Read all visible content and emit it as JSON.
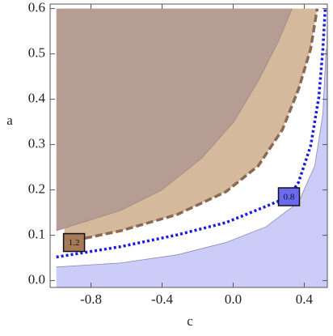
{
  "chart_data": {
    "type": "contour",
    "x_label": "c",
    "y_label": "a",
    "xlim": [
      -1.03,
      0.53
    ],
    "ylim": [
      -0.015,
      0.61
    ],
    "xticks": [
      -0.8,
      -0.4,
      {
        "value": 0,
        "label": "0.0"
      },
      0.4
    ],
    "yticks": [
      {
        "value": 0,
        "label": "0.0"
      },
      0.1,
      0.2,
      0.3,
      0.4,
      0.5,
      0.6
    ],
    "contours": [
      {
        "line_color": "#8a6a52",
        "line_style": "dashed",
        "fill": "#d4b99c",
        "fill_side": "upper-left",
        "label": "1.2",
        "label_color": "#a57a58",
        "x": [
          -0.95,
          -0.632,
          -0.314,
          -0.041,
          0.141,
          0.277,
          0.368,
          0.436,
          0.473
        ],
        "values": [
          0.084,
          0.11,
          0.146,
          0.196,
          0.253,
          0.333,
          0.422,
          0.511,
          0.6
        ]
      },
      {
        "line_color": "#9c8a86",
        "line_style": "solid",
        "fill": "#b59d94",
        "fill_side": "upper-left",
        "x": [
          -0.995,
          -0.632,
          -0.405,
          -0.177,
          0.005,
          0.141,
          0.255,
          0.332
        ],
        "values": [
          0.11,
          0.155,
          0.199,
          0.27,
          0.351,
          0.44,
          0.528,
          0.6
        ]
      },
      {
        "line_color": "#8a8ab0",
        "line_style": "solid",
        "fill": "#ccccf8",
        "fill_side": "lower-right",
        "x": [
          -0.995,
          -0.632,
          -0.314,
          -0.041,
          0.186,
          0.368,
          0.459,
          0.505,
          0.523
        ],
        "values": [
          0.03,
          0.039,
          0.057,
          0.084,
          0.119,
          0.173,
          0.253,
          0.368,
          0.511
        ]
      },
      {
        "line_color": "#1a1ae0",
        "line_style": "dotted",
        "fill": null,
        "fill_side": null,
        "label": "0.8",
        "label_color": "#6a6af0",
        "x": [
          -0.995,
          -0.632,
          -0.314,
          -0.041,
          0.186,
          0.314,
          0.368,
          0.436,
          0.482,
          0.505,
          0.518
        ],
        "values": [
          0.052,
          0.075,
          0.101,
          0.128,
          0.164,
          0.185,
          0.217,
          0.297,
          0.404,
          0.511,
          0.6
        ]
      }
    ]
  }
}
